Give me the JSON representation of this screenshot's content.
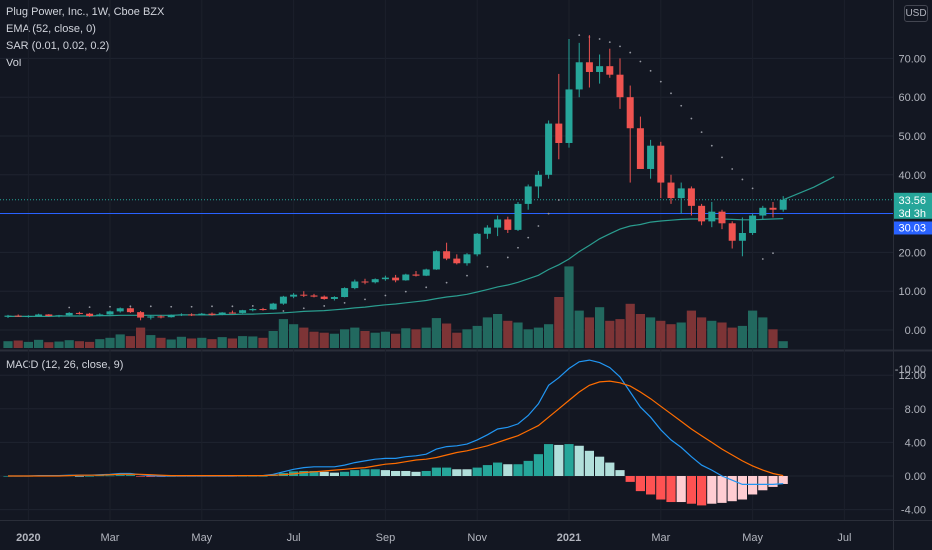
{
  "legend": {
    "title": "Plug Power, Inc., 1W, Cboe BZX",
    "ema": "EMA (52, close, 0)",
    "sar": "SAR (0.01, 0.02, 0.2)",
    "vol": "Vol",
    "macd": "MACD (12, 26, close, 9)"
  },
  "currency": "USD",
  "price_labels": {
    "last": "33.56",
    "countdown": "3d 3h",
    "hline": "30.03"
  },
  "colors": {
    "background": "#131722",
    "up": "#26a69a",
    "down": "#ef5350",
    "ema": "#2a9d8f",
    "sar": "#9598a1",
    "macd": "#2196f3",
    "signal": "#ff6d00",
    "hline": "#2962ff",
    "hist_up_strong": "#26a69a",
    "hist_up_weak": "#b2dfdb",
    "hist_down_strong": "#ff5252",
    "hist_down_weak": "#ffcdd2"
  },
  "chart_data": {
    "type": "candlestick",
    "title": "Plug Power, Inc., 1W, Cboe BZX",
    "price_axis_ticks": [
      "70.00",
      "60.00",
      "50.00",
      "40.00",
      "30.00",
      "20.00",
      "10.00",
      "0.00",
      "-10.00"
    ],
    "macd_axis_ticks": [
      "12.00",
      "8.00",
      "4.00",
      "0.00",
      "-4.00"
    ],
    "time_axis": [
      {
        "label": "2020",
        "week": 2,
        "bold": true
      },
      {
        "label": "Mar",
        "week": 10
      },
      {
        "label": "May",
        "week": 19
      },
      {
        "label": "Jul",
        "week": 28
      },
      {
        "label": "Sep",
        "week": 37
      },
      {
        "label": "Nov",
        "week": 46
      },
      {
        "label": "2021",
        "week": 55,
        "bold": true
      },
      {
        "label": "Mar",
        "week": 64
      },
      {
        "label": "May",
        "week": 73
      },
      {
        "label": "Jul",
        "week": 82
      }
    ],
    "price_ylim": [
      -10,
      80
    ],
    "macd_ylim": [
      -6,
      15
    ],
    "hline_value": 30.03,
    "ohlc": [
      [
        3.4,
        3.9,
        3.1,
        3.7
      ],
      [
        3.7,
        4.0,
        3.4,
        3.5
      ],
      [
        3.5,
        3.8,
        3.2,
        3.6
      ],
      [
        3.6,
        4.2,
        3.5,
        4.0
      ],
      [
        4.0,
        4.1,
        3.5,
        3.6
      ],
      [
        3.6,
        3.9,
        3.3,
        3.8
      ],
      [
        3.8,
        4.6,
        3.7,
        4.4
      ],
      [
        4.4,
        4.7,
        4.0,
        4.2
      ],
      [
        4.2,
        4.4,
        3.4,
        3.6
      ],
      [
        3.6,
        4.3,
        3.5,
        4.0
      ],
      [
        4.0,
        5.0,
        3.9,
        4.8
      ],
      [
        4.8,
        5.8,
        4.5,
        5.6
      ],
      [
        5.6,
        5.8,
        4.4,
        4.6
      ],
      [
        4.6,
        4.9,
        2.5,
        3.2
      ],
      [
        3.2,
        3.8,
        2.7,
        3.5
      ],
      [
        3.5,
        3.8,
        3.0,
        3.3
      ],
      [
        3.3,
        4.0,
        3.2,
        3.9
      ],
      [
        3.9,
        4.3,
        3.6,
        4.0
      ],
      [
        4.0,
        4.3,
        3.6,
        3.9
      ],
      [
        3.9,
        4.4,
        3.8,
        4.2
      ],
      [
        4.2,
        4.5,
        3.7,
        3.9
      ],
      [
        3.9,
        4.6,
        3.8,
        4.5
      ],
      [
        4.5,
        5.0,
        4.2,
        4.4
      ],
      [
        4.4,
        5.2,
        4.3,
        5.1
      ],
      [
        5.1,
        5.6,
        4.8,
        5.4
      ],
      [
        5.4,
        5.7,
        5.0,
        5.3
      ],
      [
        5.3,
        7.0,
        5.2,
        6.8
      ],
      [
        6.8,
        8.8,
        6.5,
        8.6
      ],
      [
        8.6,
        9.5,
        8.2,
        9.1
      ],
      [
        9.1,
        10.0,
        8.5,
        8.9
      ],
      [
        8.9,
        9.3,
        8.4,
        8.6
      ],
      [
        8.6,
        8.9,
        7.8,
        8.0
      ],
      [
        8.0,
        8.7,
        7.6,
        8.5
      ],
      [
        8.5,
        11.0,
        8.4,
        10.8
      ],
      [
        10.8,
        13.0,
        10.5,
        12.5
      ],
      [
        12.5,
        13.2,
        11.8,
        12.3
      ],
      [
        12.3,
        13.3,
        12.0,
        13.1
      ],
      [
        13.1,
        14.0,
        12.7,
        13.5
      ],
      [
        13.5,
        14.2,
        12.3,
        12.8
      ],
      [
        12.8,
        14.5,
        12.7,
        14.3
      ],
      [
        14.3,
        15.2,
        13.8,
        14.0
      ],
      [
        14.0,
        15.8,
        13.9,
        15.6
      ],
      [
        15.6,
        20.5,
        15.5,
        20.3
      ],
      [
        20.3,
        22.5,
        18.0,
        18.4
      ],
      [
        18.4,
        19.5,
        16.9,
        17.2
      ],
      [
        17.2,
        19.8,
        16.6,
        19.5
      ],
      [
        19.5,
        25.0,
        19.0,
        24.8
      ],
      [
        24.8,
        27.0,
        23.5,
        26.4
      ],
      [
        26.4,
        29.5,
        24.2,
        28.5
      ],
      [
        28.5,
        29.2,
        25.0,
        25.8
      ],
      [
        25.8,
        33.0,
        25.5,
        32.5
      ],
      [
        32.5,
        37.5,
        31.0,
        37.0
      ],
      [
        37.0,
        41.0,
        34.0,
        40.0
      ],
      [
        40.0,
        54.0,
        39.0,
        53.2
      ],
      [
        53.2,
        66.0,
        44.0,
        48.2
      ],
      [
        48.2,
        75.0,
        47.0,
        62.0
      ],
      [
        62.0,
        74.0,
        60.0,
        69.0
      ],
      [
        69.0,
        76.0,
        62.5,
        66.5
      ],
      [
        66.5,
        71.0,
        63.5,
        68.0
      ],
      [
        68.0,
        72.5,
        65.0,
        65.8
      ],
      [
        65.8,
        70.0,
        57.0,
        60.0
      ],
      [
        60.0,
        63.0,
        38.0,
        52.0
      ],
      [
        52.0,
        55.0,
        42.0,
        41.5
      ],
      [
        41.5,
        49.0,
        39.0,
        47.5
      ],
      [
        47.5,
        48.5,
        34.0,
        38.0
      ],
      [
        38.0,
        40.0,
        32.5,
        34.0
      ],
      [
        34.0,
        38.0,
        30.0,
        36.5
      ],
      [
        36.5,
        37.0,
        29.5,
        32.0
      ],
      [
        32.0,
        32.5,
        27.0,
        28.0
      ],
      [
        28.0,
        33.0,
        26.5,
        30.5
      ],
      [
        30.5,
        31.0,
        26.0,
        27.5
      ],
      [
        27.5,
        28.0,
        21.0,
        23.0
      ],
      [
        23.0,
        29.0,
        19.0,
        25.0
      ],
      [
        25.0,
        30.0,
        24.5,
        29.5
      ],
      [
        29.5,
        32.0,
        28.5,
        31.5
      ],
      [
        31.5,
        33.0,
        29.0,
        31.0
      ],
      [
        31.0,
        34.5,
        30.5,
        33.56
      ]
    ],
    "ema": [
      3.5,
      3.5,
      3.5,
      3.5,
      3.5,
      3.6,
      3.6,
      3.6,
      3.6,
      3.7,
      3.7,
      3.8,
      3.8,
      3.8,
      3.8,
      3.8,
      3.8,
      3.9,
      3.9,
      3.9,
      3.9,
      4.0,
      4.0,
      4.1,
      4.1,
      4.2,
      4.3,
      4.4,
      4.6,
      4.8,
      4.9,
      5.0,
      5.2,
      5.4,
      5.7,
      5.9,
      6.2,
      6.5,
      6.7,
      7.0,
      7.3,
      7.6,
      8.1,
      8.5,
      8.8,
      9.2,
      9.8,
      10.4,
      11.1,
      11.6,
      12.3,
      13.2,
      14.1,
      15.6,
      16.8,
      18.3,
      20.2,
      21.8,
      23.5,
      24.8,
      26.0,
      26.8,
      27.2,
      27.8,
      28.1,
      28.3,
      28.5,
      28.6,
      28.6,
      28.7,
      28.6,
      28.5,
      28.4,
      28.4,
      28.5,
      28.6,
      28.7
    ],
    "ema_extension": [
      [
        76,
        33.56
      ],
      [
        79,
        36.8
      ],
      [
        81,
        39.5
      ]
    ],
    "sar": [
      [
        6,
        5.8
      ],
      [
        8,
        5.9
      ],
      [
        10,
        6.0
      ],
      [
        12,
        6.1
      ],
      [
        14,
        6.1
      ],
      [
        16,
        6.0
      ],
      [
        18,
        6.0
      ],
      [
        20,
        6.1
      ],
      [
        22,
        6.1
      ],
      [
        24,
        6.2
      ],
      [
        27,
        4.9
      ],
      [
        29,
        5.6
      ],
      [
        31,
        6.2
      ],
      [
        33,
        7.0
      ],
      [
        35,
        7.9
      ],
      [
        37,
        8.9
      ],
      [
        39,
        9.9
      ],
      [
        41,
        11.0
      ],
      [
        43,
        12.2
      ],
      [
        45,
        14.0
      ],
      [
        47,
        16.3
      ],
      [
        49,
        18.7
      ],
      [
        50,
        21.2
      ],
      [
        51,
        23.8
      ],
      [
        52,
        26.8
      ],
      [
        53,
        30.0
      ],
      [
        54,
        33.5
      ],
      [
        56,
        76.0
      ],
      [
        57,
        75.5
      ],
      [
        58,
        75.0
      ],
      [
        59,
        74.2
      ],
      [
        60,
        73.1
      ],
      [
        61,
        71.5
      ],
      [
        62,
        69.2
      ],
      [
        63,
        66.8
      ],
      [
        64,
        64.0
      ],
      [
        65,
        61.0
      ],
      [
        66,
        57.8
      ],
      [
        67,
        54.5
      ],
      [
        68,
        51.0
      ],
      [
        69,
        47.5
      ],
      [
        70,
        44.5
      ],
      [
        71,
        41.5
      ],
      [
        72,
        38.8
      ],
      [
        73,
        36.5
      ],
      [
        74,
        18.3
      ],
      [
        75,
        19.8
      ]
    ],
    "volume": [
      20,
      22,
      18,
      24,
      17,
      19,
      23,
      20,
      18,
      26,
      30,
      40,
      35,
      60,
      38,
      30,
      25,
      33,
      28,
      30,
      26,
      32,
      28,
      35,
      34,
      30,
      50,
      85,
      70,
      60,
      48,
      45,
      42,
      55,
      60,
      50,
      45,
      48,
      42,
      58,
      55,
      60,
      88,
      72,
      45,
      55,
      65,
      90,
      100,
      80,
      75,
      55,
      60,
      70,
      150,
      240,
      110,
      90,
      120,
      80,
      85,
      130,
      100,
      90,
      80,
      70,
      75,
      110,
      90,
      80,
      75,
      60,
      65,
      110,
      90,
      55,
      20
    ],
    "macd": [
      0.0,
      0.0,
      0.0,
      0.05,
      0.05,
      0.05,
      0.1,
      0.1,
      0.1,
      0.15,
      0.2,
      0.3,
      0.3,
      0.15,
      0.05,
      0.0,
      0.0,
      0.0,
      0.0,
      0.0,
      0.0,
      0.0,
      0.0,
      0.05,
      0.05,
      0.05,
      0.2,
      0.5,
      0.8,
      1.0,
      1.1,
      1.1,
      1.1,
      1.3,
      1.6,
      1.8,
      2.0,
      2.1,
      2.1,
      2.3,
      2.4,
      2.6,
      3.2,
      3.5,
      3.6,
      3.8,
      4.3,
      4.9,
      5.6,
      5.8,
      6.2,
      7.2,
      8.6,
      10.8,
      11.7,
      12.8,
      13.6,
      13.8,
      13.5,
      12.9,
      11.8,
      10.0,
      8.2,
      7.0,
      5.5,
      4.3,
      3.4,
      2.3,
      1.3,
      0.7,
      0.0,
      -0.5,
      -1.0,
      -1.0,
      -1.0,
      -1.0,
      -0.9
    ],
    "signal": [
      0.0,
      0.0,
      0.0,
      0.0,
      0.0,
      0.0,
      0.05,
      0.1,
      0.1,
      0.1,
      0.15,
      0.2,
      0.2,
      0.2,
      0.15,
      0.1,
      0.05,
      0.05,
      0.05,
      0.05,
      0.05,
      0.05,
      0.05,
      0.05,
      0.05,
      0.05,
      0.1,
      0.15,
      0.25,
      0.4,
      0.5,
      0.6,
      0.7,
      0.8,
      0.9,
      1.0,
      1.2,
      1.4,
      1.5,
      1.7,
      1.9,
      2.0,
      2.2,
      2.5,
      2.8,
      3.0,
      3.3,
      3.6,
      4.0,
      4.4,
      4.8,
      5.4,
      6.0,
      7.0,
      8.0,
      9.0,
      10.0,
      10.8,
      11.2,
      11.3,
      11.1,
      10.7,
      10.0,
      9.2,
      8.3,
      7.4,
      6.5,
      5.6,
      4.8,
      4.0,
      3.2,
      2.5,
      1.8,
      1.2,
      0.7,
      0.3,
      0.05
    ]
  }
}
